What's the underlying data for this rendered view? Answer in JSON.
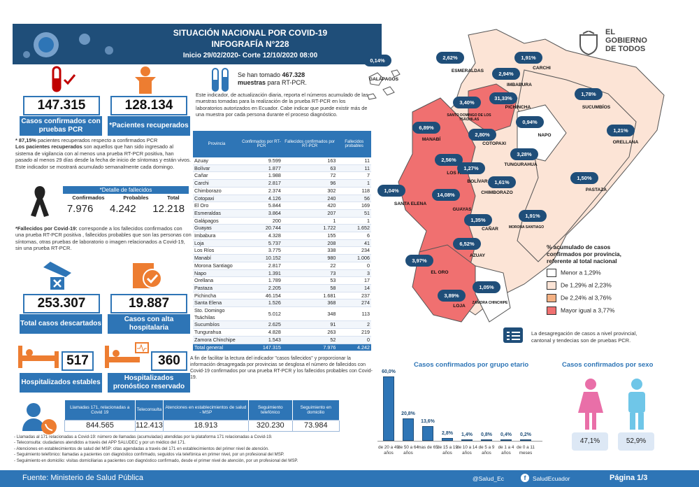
{
  "header": {
    "title1": "SITUACIÓN NACIONAL POR  COVID-19",
    "title2": "INFOGRAFÍA N°228",
    "title3": "Inicio 29/02/2020- Corte 12/10/2020 08:00"
  },
  "logo": {
    "line1": "EL",
    "line2": "GOBIERNO",
    "line3": "DE TODOS"
  },
  "kpi": {
    "confirmed_value": "147.315",
    "confirmed_label": "Casos confirmados con pruebas PCR",
    "recovered_value": "128.134",
    "recovered_label": "*Pacientes recuperados",
    "discarded_value": "253.307",
    "discarded_label": "Total casos descartados",
    "discharged_value": "19.887",
    "discharged_label": "Casos con alta hospitalaria",
    "stable_value": "517",
    "stable_label": "Hospitalizados estables",
    "reserved_value": "360",
    "reserved_label": "Hospitalizados pronóstico reservado"
  },
  "recovered_note_pct": "* 87,15%",
  "recovered_note": " pacientes recuperados respecto a confirmados PCR",
  "recovered_note_bold": "Los pacientes recuperados",
  "recovered_note_rest": " son aquellos que han sido ingresado al sistema de vigilancia con al menos una prueba RT-PCR positiva, han pasado al menos 29 días desde la fecha de inicio de síntomas y están vivos. Este indicador se mostrará acumulado semanalmente cada domingo.",
  "deaths": {
    "title": "*Detalle de fallecidos",
    "h_conf": "Confirmados",
    "h_prob": "Probables",
    "h_total": "Total",
    "conf": "7.976",
    "prob": "4.242",
    "total": "12.218"
  },
  "deaths_note_bold": "*Fallecidos por Covid-19:",
  "deaths_note": " corresponde a los fallecidos confirmados con una prueba RT-PCR positiva , fallecidos probables que son las personas con síntomas, otras pruebas de laboratorio o imagen relacionados a Covid-19, sin una prueba RT-PCR.",
  "tests": {
    "text1": "Se han tomado ",
    "value": "467.328",
    "text2": "muestras",
    "text3": " para RT-PCR."
  },
  "tests_note": "Este indicador, de actualización diaria, reporta el números acumulado de las muestras tomadas para la realización de la prueba RT-PCR en los laboratorios autorizados en Ecuador. Cabe indicar que puede existir más de una muestra por cada persona durante el proceso diagnóstico.",
  "table": {
    "headers": [
      "Provincia",
      "Confirmados por RT-PCR",
      "Fallecidos confirmados por RT-PCR",
      "Fallecidos probables"
    ],
    "rows": [
      [
        "Azuay",
        "9.599",
        "163",
        "11"
      ],
      [
        "Bolívar",
        "1.877",
        "63",
        "11"
      ],
      [
        "Cañar",
        "1.988",
        "72",
        "7"
      ],
      [
        "Carchi",
        "2.817",
        "96",
        "1"
      ],
      [
        "Chimborazo",
        "2.374",
        "302",
        "118"
      ],
      [
        "Cotopaxi",
        "4.126",
        "240",
        "56"
      ],
      [
        "El Oro",
        "5.844",
        "420",
        "169"
      ],
      [
        "Esmeraldas",
        "3.864",
        "207",
        "51"
      ],
      [
        "Galápagos",
        "200",
        "1",
        "1"
      ],
      [
        "Guayas",
        "20.744",
        "1.722",
        "1.652"
      ],
      [
        "Imbabura",
        "4.328",
        "155",
        "6"
      ],
      [
        "Loja",
        "5.737",
        "208",
        "41"
      ],
      [
        "Los Ríos",
        "3.775",
        "338",
        "234"
      ],
      [
        "Manabí",
        "10.152",
        "980",
        "1.006"
      ],
      [
        "Morona Santiago",
        "2.817",
        "22",
        "0"
      ],
      [
        "Napo",
        "1.391",
        "73",
        "3"
      ],
      [
        "Orellana",
        "1.789",
        "53",
        "17"
      ],
      [
        "Pastaza",
        "2.205",
        "58",
        "14"
      ],
      [
        "Pichincha",
        "46.154",
        "1.681",
        "237"
      ],
      [
        "Santa Elena",
        "1.526",
        "368",
        "274"
      ],
      [
        "Sto. Domingo Tsáchilas",
        "5.012",
        "348",
        "113"
      ],
      [
        "Sucumbíos",
        "2.625",
        "91",
        "2"
      ],
      [
        "Tungurahua",
        "4.828",
        "263",
        "219"
      ],
      [
        "Zamora Chinchipe",
        "1.543",
        "52",
        "0"
      ]
    ],
    "total": [
      "Total general",
      "147.315",
      "7.976",
      "4.242"
    ]
  },
  "table_note": "A fin de facilitar la lectura del indicador \"casos fallecidos\" y proporcionar la información desagregada por provincias se desglosa el número de fallecidos con Covid-19 confirmados por una prueba RT-PCR y los fallecidos probables con Covid-19.",
  "calls": {
    "headers": [
      "Llamadas 171, relacionadas a Covid 19",
      "Teleconsulta",
      "Atenciones en establecimientos de salud - MSP",
      "Seguimiento telefónico",
      "Seguimiento en domicilio"
    ],
    "values": [
      "844.565",
      "112.413",
      "18.913",
      "320.230",
      "73.984"
    ]
  },
  "call_notes": [
    "- Llamadas al 171 relacionadas a Covid-19: número de llamadas (acumuladas) atendidas por la plataforma 171 relacionadas a Covid-19.",
    "- Teleconsulta: ciudadanos atendidos a través del APP SALUDEC y por un médico del 171.",
    "- Atenciones en establecimientos de salud del MSP:  citas agendadas a través del 171 en establecimientos del primer nivel de atención.",
    "- Seguimiento telefónico: llamadas a pacientes con diagnóstico confirmado, seguidos vía telefónica en primer nivel, por un profesional del MSP.",
    "- Seguimiento en domicilio: visitas domiciliarias a pacientes con diagnóstico confirmado, desde el primer nivel de atención, por un profesional del MSP."
  ],
  "map": {
    "provinces": [
      {
        "name": "GALÁPAGOS",
        "pct": "0,14%"
      },
      {
        "name": "ESMERALDAS",
        "pct": "2,62%"
      },
      {
        "name": "CARCHI",
        "pct": "1,91%"
      },
      {
        "name": "IMBABURA",
        "pct": "2,94%"
      },
      {
        "name": "SUCUMBÍOS",
        "pct": "1,78%"
      },
      {
        "name": "SANTO DOMINGO DE LOS TSÁCHILAS",
        "pct": "3,40%"
      },
      {
        "name": "PICHINCHA",
        "pct": "31,33%"
      },
      {
        "name": "MANABÍ",
        "pct": "6,89%"
      },
      {
        "name": "COTOPAXI",
        "pct": "2,80%"
      },
      {
        "name": "NAPO",
        "pct": "0,94%"
      },
      {
        "name": "ORELLANA",
        "pct": "1,21%"
      },
      {
        "name": "LOS RÍOS",
        "pct": "2,56%"
      },
      {
        "name": "TUNGURAHUA",
        "pct": "3,28%"
      },
      {
        "name": "BOLÍVAR",
        "pct": "1,27%"
      },
      {
        "name": "CHIMBORAZO",
        "pct": "1,61%"
      },
      {
        "name": "PASTAZA",
        "pct": "1,50%"
      },
      {
        "name": "SANTA ELENA",
        "pct": "1,04%"
      },
      {
        "name": "GUAYAS",
        "pct": "14,08%"
      },
      {
        "name": "CAÑAR",
        "pct": "1,35%"
      },
      {
        "name": "MORONA SANTIAGO",
        "pct": "1,91%"
      },
      {
        "name": "AZUAY",
        "pct": "6,52%"
      },
      {
        "name": "EL ORO",
        "pct": "3,97%"
      },
      {
        "name": "LOJA",
        "pct": "3,89%"
      },
      {
        "name": "ZAMORA CHINCHIPE",
        "pct": "1,05%"
      }
    ],
    "legend_title": "% acumulado de casos confirmados por provincia, referente al total nacional",
    "legend": [
      {
        "label": "Menor a 1,29%",
        "color": "#ffffff"
      },
      {
        "label": "De 1,29% al 2,23%",
        "color": "#fce4d6"
      },
      {
        "label": "De 2,24% al 3,76%",
        "color": "#f4b183"
      },
      {
        "label": "Mayor igual a 3,77%",
        "color": "#f07070"
      }
    ],
    "note": "La desagregación de casos a nivel provincial, cantonal y tendecias son de pruebas PCR."
  },
  "age": {
    "title": "Casos confirmados por grupo etario"
  },
  "sex": {
    "title": "Casos confirmados por sexo",
    "female": "47,1%",
    "male": "52,9%"
  },
  "chart_data": {
    "type": "bar",
    "title": "Casos confirmados por grupo etario",
    "categories": [
      "de 20 a 49 años",
      "de 50 a 64 años",
      "mas de 65",
      "de 15 a 19 años",
      "de 10 a 14 años",
      "de 5 a 9 años",
      "de 1 a 4 años",
      "de 0 a 11 meses"
    ],
    "values": [
      60.0,
      20.8,
      13.6,
      2.8,
      1.4,
      0.8,
      0.4,
      0.2
    ],
    "labels": [
      "60,0%",
      "20,8%",
      "13,6%",
      "2,8%",
      "1,4%",
      "0,8%",
      "0,4%",
      "0,2%"
    ],
    "ylim": [
      0,
      60
    ]
  },
  "footer": {
    "source_label": "Fuente: ",
    "source": "Ministerio de Salud Pública",
    "twitter": "@Salud_Ec",
    "facebook": "SaludEcuador",
    "page": "Página 1/3"
  },
  "colors": {
    "primary": "#2e75b6",
    "dark": "#1f4e79",
    "female": "#e96fa8",
    "male": "#6fc6e8"
  }
}
